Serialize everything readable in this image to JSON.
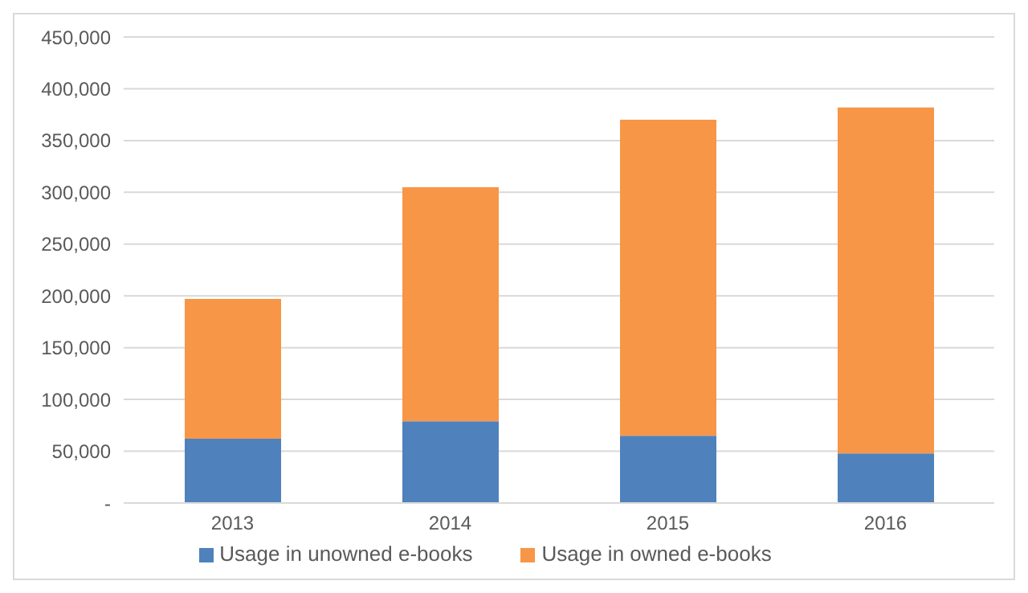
{
  "chart_data": {
    "type": "bar",
    "stacked": true,
    "categories": [
      "2013",
      "2014",
      "2015",
      "2016"
    ],
    "series": [
      {
        "name": "Usage in unowned e-books",
        "color": "#4f81bd",
        "values": [
          62000,
          79000,
          65000,
          48000
        ]
      },
      {
        "name": "Usage in owned e-books",
        "color": "#f79646",
        "values": [
          135000,
          226000,
          305000,
          334000
        ]
      }
    ],
    "ylim": [
      0,
      450000
    ],
    "yticks": [
      {
        "value": 0,
        "label": "-"
      },
      {
        "value": 50000,
        "label": "50,000"
      },
      {
        "value": 100000,
        "label": "100,000"
      },
      {
        "value": 150000,
        "label": "150,000"
      },
      {
        "value": 200000,
        "label": "200,000"
      },
      {
        "value": 250000,
        "label": "250,000"
      },
      {
        "value": 300000,
        "label": "300,000"
      },
      {
        "value": 350000,
        "label": "350,000"
      },
      {
        "value": 400000,
        "label": "400,000"
      },
      {
        "value": 450000,
        "label": "450,000"
      }
    ],
    "grid": "y",
    "legend": "bottom"
  }
}
